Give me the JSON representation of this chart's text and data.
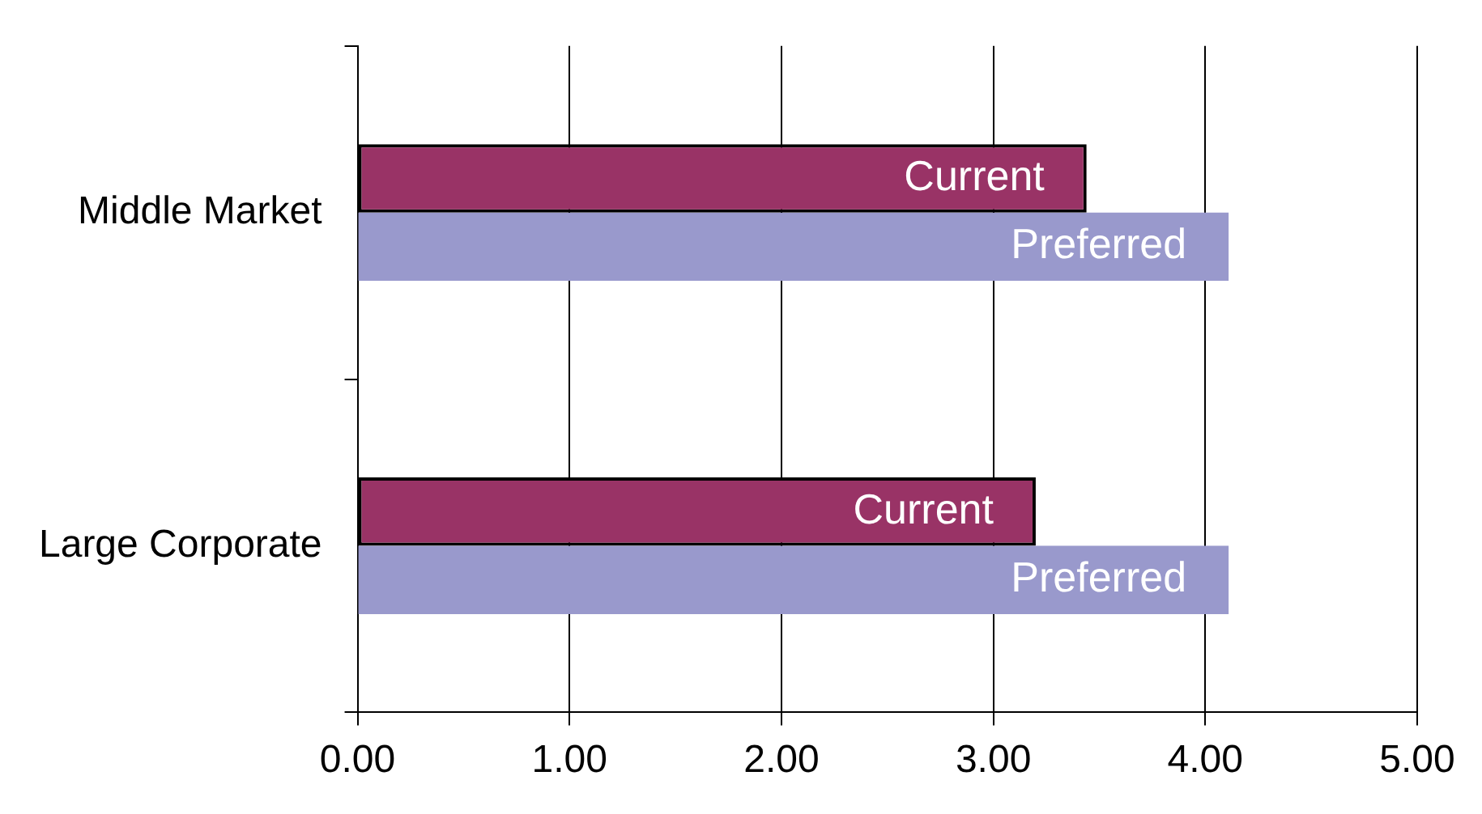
{
  "chart_data": {
    "type": "bar",
    "orientation": "horizontal",
    "categories": [
      "Middle Market",
      "Large Corporate"
    ],
    "series": [
      {
        "name": "Current",
        "color": "#993366",
        "values": [
          3.44,
          3.2
        ]
      },
      {
        "name": "Preferred",
        "color": "#9999cc",
        "values": [
          4.11,
          4.11
        ]
      }
    ],
    "xlim": [
      0,
      5
    ],
    "xticks": [
      {
        "value": 0,
        "label": "0.00"
      },
      {
        "value": 1,
        "label": "1.00"
      },
      {
        "value": 2,
        "label": "2.00"
      },
      {
        "value": 3,
        "label": "3.00"
      },
      {
        "value": 4,
        "label": "4.00"
      },
      {
        "value": 5,
        "label": "5.00"
      }
    ],
    "grid": "x",
    "legend": false
  }
}
